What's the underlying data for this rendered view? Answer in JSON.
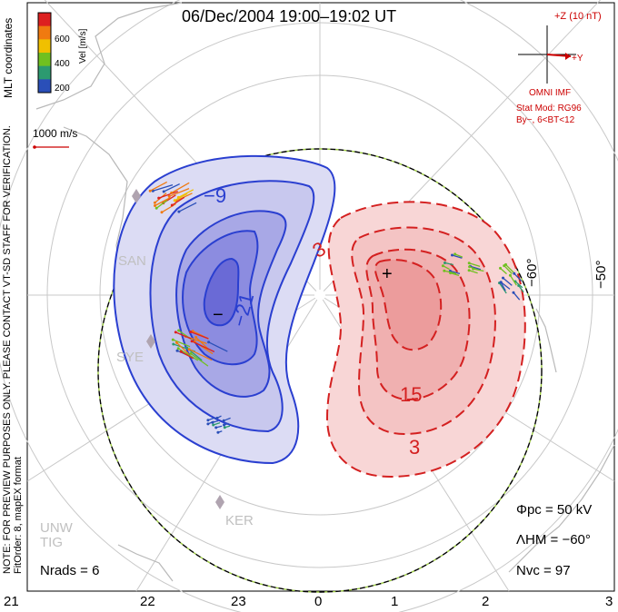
{
  "title": "06/Dec/2004 19:00–19:02 UT",
  "colorbar": {
    "label": "Vel [m/s]",
    "ticks": [
      "600",
      "400",
      "200"
    ],
    "colors": [
      "#dd2020",
      "#f07a10",
      "#f0c000",
      "#70c020",
      "#2c9a70",
      "#2a4fb8"
    ]
  },
  "coord_label": "MLT coordinates",
  "scale_vector": "1000 m/s",
  "note_lines": [
    "NOTE: FOR PREVIEW PURPOSES ONLY. PLEASE CONTACT VT-SD STAFF FOR VERIFICATION.",
    "FitOrder: 8, mapEX format"
  ],
  "imf": {
    "z_label": "+Z (10 nT)",
    "y_label": "+Y",
    "source": "OMNI IMF",
    "stat_mod": "Stat Mod: RG96",
    "condition": "By−, 6<BT<12"
  },
  "radars": [
    "SAN",
    "SYE",
    "KER",
    "UNW",
    "TIG"
  ],
  "latitude_labels": [
    "−60°",
    "−50°"
  ],
  "contour_labels": {
    "negative": [
      "−9",
      "−21",
      "−"
    ],
    "positive": [
      "3",
      "+",
      "15",
      "3"
    ]
  },
  "stats": {
    "phi_pc": "Φpc = 50 kV",
    "lambda_hm": "ΛHM = −60°",
    "n_vc": "Nvc = 97",
    "n_rads": "Nrads = 6"
  },
  "mlt_ticks": [
    "21",
    "22",
    "23",
    "0",
    "1",
    "2",
    "3"
  ],
  "colors": {
    "negative_cell": "#2a3fd0",
    "positive_cell": "#e02020",
    "boundary": "#000000",
    "coast": "#b8b8b8"
  }
}
